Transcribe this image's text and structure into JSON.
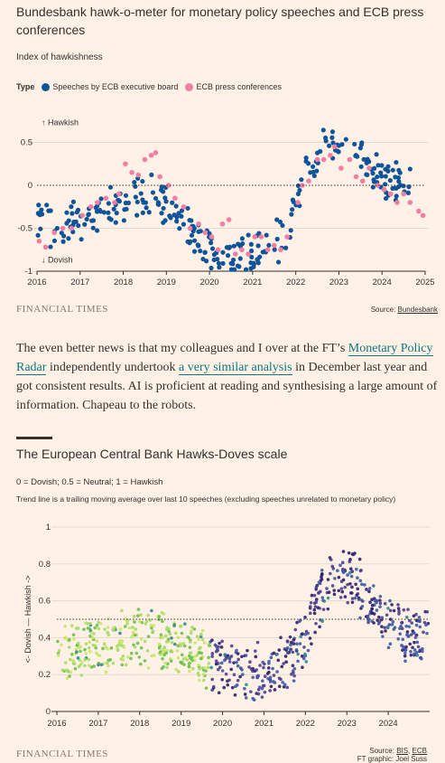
{
  "charts": {
    "hawk_o_meter": {
      "title": "Bundesbank hawk-o-meter for monetary policy speeches and ECB press conferences",
      "subtitle": "Index of hawkishness",
      "legend_label": "Type",
      "legend_items": [
        {
          "name": "Speeches by ECB executive board",
          "color": "#0f5499"
        },
        {
          "name": "ECB press conferences",
          "color": "#f07fa3"
        }
      ],
      "brand": "FINANCIAL TIMES",
      "source_label": "Source: ",
      "source_name": "Bundesbank",
      "annotations": {
        "top": "↑ Hawkish",
        "bottom": "↓ Dovish"
      }
    },
    "hawks_doves": {
      "title": "The European Central Bank Hawks-Doves scale",
      "subtitle": "0 = Dovish; 0.5 = Neutral; 1 = Hawkish",
      "note": "Trend line is a trailing moving average over last 10 speeches (excluding speeches unrelated to monetary policy)",
      "ylabel": "<- Dovish — Hawkish ->",
      "brand": "FINANCIAL TIMES",
      "source_label": "Source: ",
      "source_names": [
        "BIS",
        "ECB"
      ],
      "graphic": "FT graphic: Joel Suss"
    }
  },
  "article": {
    "p1": "The even better news is that my colleagues and I over at the FT’s ",
    "link1": "Monetary Policy Radar",
    "p2": " independently undertook ",
    "link2": "a very similar analysis",
    "p3": " in December last year and got consistent results. AI is proficient at reading and synthesising a large amount of information. Chapeau to the robots."
  },
  "chart_data": [
    {
      "type": "scatter",
      "title": "Bundesbank hawk-o-meter for monetary policy speeches and ECB press conferences",
      "subtitle": "Index of hawkishness",
      "xlim": [
        2016,
        2025
      ],
      "ylim": [
        -1,
        0.8
      ],
      "xticks": [
        2016,
        2017,
        2018,
        2019,
        2020,
        2021,
        2022,
        2023,
        2024,
        2025
      ],
      "yticks": [
        -1,
        -0.5,
        0,
        0.5
      ],
      "ytick_labels": [
        "-1",
        "-0.5",
        "0",
        "0.5"
      ],
      "reference_line": 0,
      "grid": "horizontal",
      "legend": "top-left",
      "series": [
        {
          "name": "Speeches by ECB executive board",
          "color": "#0f5499",
          "trend": [
            [
              2016.0,
              -0.4
            ],
            [
              2016.5,
              -0.45
            ],
            [
              2017.0,
              -0.4
            ],
            [
              2017.5,
              -0.3
            ],
            [
              2018.0,
              -0.2
            ],
            [
              2018.5,
              -0.1
            ],
            [
              2019.0,
              -0.2
            ],
            [
              2019.5,
              -0.45
            ],
            [
              2020.0,
              -0.72
            ],
            [
              2020.5,
              -0.85
            ],
            [
              2021.0,
              -0.8
            ],
            [
              2021.5,
              -0.7
            ],
            [
              2022.0,
              -0.3
            ],
            [
              2022.3,
              0.2
            ],
            [
              2022.8,
              0.45
            ],
            [
              2023.2,
              0.4
            ],
            [
              2023.7,
              0.25
            ],
            [
              2024.2,
              0.0
            ],
            [
              2024.6,
              0.05
            ]
          ],
          "spread": 0.2,
          "count": 300
        },
        {
          "name": "ECB press conferences",
          "color": "#f07fa3",
          "points": [
            [
              2016.05,
              -0.65
            ],
            [
              2016.2,
              -0.72
            ],
            [
              2016.4,
              -0.55
            ],
            [
              2016.6,
              -0.5
            ],
            [
              2016.8,
              -0.5
            ],
            [
              2017.05,
              -0.35
            ],
            [
              2017.25,
              -0.25
            ],
            [
              2017.4,
              -0.2
            ],
            [
              2017.6,
              -0.15
            ],
            [
              2017.8,
              -0.2
            ],
            [
              2017.9,
              -0.1
            ],
            [
              2018.05,
              0.25
            ],
            [
              2018.2,
              0.15
            ],
            [
              2018.35,
              0.12
            ],
            [
              2018.5,
              0.3
            ],
            [
              2018.65,
              0.35
            ],
            [
              2018.75,
              0.38
            ],
            [
              2018.85,
              0.1
            ],
            [
              2019.05,
              0.0
            ],
            [
              2019.2,
              -0.15
            ],
            [
              2019.4,
              -0.25
            ],
            [
              2019.55,
              -0.5
            ],
            [
              2019.75,
              -0.45
            ],
            [
              2019.9,
              -0.55
            ],
            [
              2020.05,
              -0.6
            ],
            [
              2020.2,
              -0.75
            ],
            [
              2020.3,
              -0.45
            ],
            [
              2020.45,
              -0.4
            ],
            [
              2020.6,
              -0.8
            ],
            [
              2020.75,
              -0.75
            ],
            [
              2020.9,
              -0.8
            ],
            [
              2021.05,
              -0.6
            ],
            [
              2021.2,
              -0.6
            ],
            [
              2021.35,
              -0.75
            ],
            [
              2021.5,
              -0.7
            ],
            [
              2021.65,
              -0.75
            ],
            [
              2021.8,
              -0.6
            ],
            [
              2022.05,
              -0.2
            ],
            [
              2022.15,
              0.0
            ],
            [
              2022.3,
              0.05
            ],
            [
              2022.5,
              0.3
            ],
            [
              2022.65,
              0.3
            ],
            [
              2022.8,
              0.35
            ],
            [
              2022.9,
              0.45
            ],
            [
              2023.05,
              0.2
            ],
            [
              2023.25,
              0.3
            ],
            [
              2023.4,
              0.1
            ],
            [
              2023.55,
              0.05
            ],
            [
              2023.7,
              0.2
            ],
            [
              2023.9,
              0.0
            ],
            [
              2024.05,
              -0.05
            ],
            [
              2024.2,
              -0.1
            ],
            [
              2024.35,
              -0.2
            ],
            [
              2024.5,
              -0.1
            ],
            [
              2024.65,
              -0.2
            ],
            [
              2024.85,
              -0.3
            ],
            [
              2024.95,
              -0.35
            ]
          ]
        }
      ],
      "annotations": [
        "↑ Hawkish",
        "↓ Dovish"
      ]
    },
    {
      "type": "scatter",
      "title": "The European Central Bank Hawks-Doves scale",
      "subtitle": "0 = Dovish; 0.5 = Neutral; 1 = Hawkish",
      "xlim": [
        2016,
        2025
      ],
      "ylim": [
        0,
        1
      ],
      "xticks": [
        2016,
        2017,
        2018,
        2019,
        2020,
        2021,
        2022,
        2023,
        2024
      ],
      "yticks": [
        0,
        0.2,
        0.4,
        0.6,
        0.8,
        1
      ],
      "ylabel": "<- Dovish — Hawkish ->",
      "reference_line": 0.5,
      "grid": "horizontal",
      "legend": "none",
      "series": [
        {
          "name": "",
          "colors": [
            "#2e1e6b",
            "#4a3f8f",
            "#3b5ba5",
            "#2d8a8c",
            "#6cc04a",
            "#a6d96a",
            "#c7e66b"
          ],
          "trend": [
            [
              2016.0,
              0.3
            ],
            [
              2016.5,
              0.33
            ],
            [
              2017.0,
              0.35
            ],
            [
              2017.5,
              0.38
            ],
            [
              2018.0,
              0.4
            ],
            [
              2018.5,
              0.4
            ],
            [
              2019.0,
              0.35
            ],
            [
              2019.5,
              0.3
            ],
            [
              2020.0,
              0.25
            ],
            [
              2020.5,
              0.22
            ],
            [
              2021.0,
              0.22
            ],
            [
              2021.5,
              0.25
            ],
            [
              2022.0,
              0.4
            ],
            [
              2022.3,
              0.6
            ],
            [
              2022.8,
              0.78
            ],
            [
              2023.2,
              0.7
            ],
            [
              2023.7,
              0.55
            ],
            [
              2024.2,
              0.45
            ],
            [
              2024.6,
              0.4
            ],
            [
              2024.95,
              0.42
            ]
          ],
          "spread": 0.13,
          "count": 750
        }
      ]
    }
  ]
}
